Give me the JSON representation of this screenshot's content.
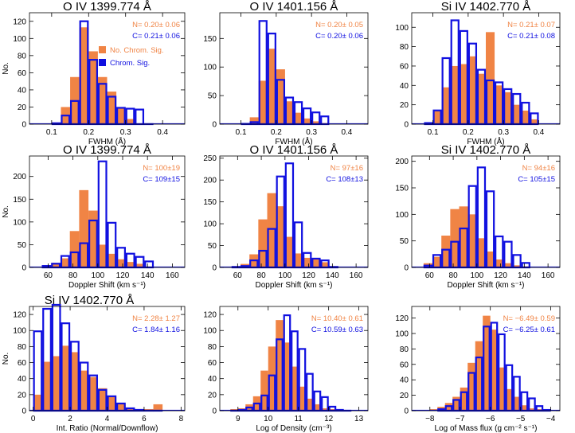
{
  "colors": {
    "no_chrom": "#F08445",
    "chrom": "#1010E0",
    "axis": "#000000"
  },
  "chart_data": [
    {
      "type": "bar",
      "title": "O IV 1399.774 Å",
      "xlabel": "FWHM (Å)",
      "ylabel": "No.",
      "xlim": [
        0.04,
        0.46
      ],
      "ylim": [
        0,
        130
      ],
      "xticks": [
        0.1,
        0.2,
        0.3,
        0.4
      ],
      "xtick_labels": [
        "0.1",
        "0.2",
        "0.3",
        "0.4"
      ],
      "yticks": [
        0,
        20,
        40,
        60,
        80,
        100,
        120
      ],
      "bin_start": 0.1,
      "bin_width": 0.025,
      "series": [
        {
          "name": "No. Chrom. Sig.",
          "values": [
            2,
            20,
            55,
            113,
            85,
            55,
            38,
            19,
            6,
            1,
            1
          ]
        },
        {
          "name": "Chrom. Sig.",
          "values": [
            2,
            11,
            28,
            121,
            76,
            48,
            33,
            20,
            19,
            18,
            1
          ]
        }
      ],
      "annotations": [
        {
          "label": "N= 0.20± 0.06",
          "series": 0
        },
        {
          "label": "C= 0.21± 0.06",
          "series": 1
        }
      ],
      "legend": {
        "placement": "top-right",
        "items": [
          {
            "label": "No. Chrom. Sig.",
            "series": 0
          },
          {
            "label": "Chrom. Sig.",
            "series": 1
          }
        ]
      }
    },
    {
      "type": "bar",
      "title": "O IV 1401.156 Å",
      "xlabel": "FWHM (Å)",
      "ylabel": "",
      "xlim": [
        0.04,
        0.46
      ],
      "ylim": [
        0,
        195
      ],
      "xticks": [
        0.1,
        0.2,
        0.3,
        0.4
      ],
      "xtick_labels": [
        "0.1",
        "0.2",
        "0.3",
        "0.4"
      ],
      "yticks": [
        0,
        50,
        100,
        150
      ],
      "bin_start": 0.1,
      "bin_width": 0.025,
      "series": [
        {
          "name": "No. Chrom. Sig.",
          "values": [
            2,
            12,
            76,
            132,
            96,
            40,
            20,
            10,
            5,
            2,
            1
          ]
        },
        {
          "name": "Chrom. Sig.",
          "values": [
            2,
            5,
            182,
            160,
            79,
            48,
            40,
            29,
            22,
            15,
            1
          ]
        }
      ],
      "annotations": [
        {
          "label": "N= 0.20± 0.05",
          "series": 0
        },
        {
          "label": "C= 0.20± 0.06",
          "series": 1
        }
      ]
    },
    {
      "type": "bar",
      "title": "Si IV 1402.770 Å",
      "xlabel": "FWHM (Å)",
      "ylabel": "",
      "xlim": [
        0.04,
        0.46
      ],
      "ylim": [
        0,
        115
      ],
      "xticks": [
        0.1,
        0.2,
        0.3,
        0.4
      ],
      "xtick_labels": [
        "0.1",
        "0.2",
        "0.3",
        "0.4"
      ],
      "yticks": [
        0,
        20,
        40,
        60,
        80,
        100
      ],
      "bin_start": 0.075,
      "bin_width": 0.025,
      "series": [
        {
          "name": "No. Chrom. Sig.",
          "values": [
            2,
            14,
            38,
            60,
            62,
            70,
            52,
            95,
            40,
            33,
            20,
            14,
            5
          ]
        },
        {
          "name": "Chrom. Sig.",
          "values": [
            2,
            15,
            69,
            108,
            97,
            84,
            57,
            46,
            44,
            37,
            32,
            23,
            12
          ]
        }
      ],
      "annotations": [
        {
          "label": "N= 0.21± 0.07",
          "series": 0
        },
        {
          "label": "C= 0.21± 0.08",
          "series": 1
        }
      ]
    },
    {
      "type": "bar",
      "title": "O IV 1399.774 Å",
      "xlabel": "Doppler Shift (km s⁻¹)",
      "ylabel": "No.",
      "xlim": [
        45,
        170
      ],
      "ylim": [
        0,
        245
      ],
      "xticks": [
        60,
        80,
        100,
        120,
        140,
        160
      ],
      "xtick_labels": [
        "60",
        "80",
        "100",
        "120",
        "140",
        "160"
      ],
      "yticks": [
        0,
        50,
        100,
        150,
        200
      ],
      "bin_start": 55,
      "bin_width": 7.5,
      "series": [
        {
          "name": "No. Chrom. Sig.",
          "values": [
            5,
            10,
            20,
            80,
            170,
            125,
            50,
            30,
            18,
            12,
            8,
            2
          ]
        },
        {
          "name": "Chrom. Sig.",
          "values": [
            5,
            10,
            27,
            35,
            55,
            105,
            235,
            100,
            45,
            32,
            25,
            15
          ]
        }
      ],
      "annotations": [
        {
          "label": "N= 100±19",
          "series": 0
        },
        {
          "label": "C= 109±15",
          "series": 1
        }
      ]
    },
    {
      "type": "bar",
      "title": "O IV 1401.156 Å",
      "xlabel": "Doppler Shift (km s⁻¹)",
      "ylabel": "",
      "xlim": [
        45,
        170
      ],
      "ylim": [
        0,
        255
      ],
      "xticks": [
        60,
        80,
        100,
        120,
        140,
        160
      ],
      "xtick_labels": [
        "60",
        "80",
        "100",
        "120",
        "140",
        "160"
      ],
      "yticks": [
        0,
        50,
        100,
        150,
        200,
        250
      ],
      "bin_start": 55,
      "bin_width": 7.5,
      "series": [
        {
          "name": "No. Chrom. Sig.",
          "values": [
            3,
            8,
            30,
            110,
            170,
            140,
            70,
            32,
            22,
            20,
            12,
            3
          ]
        },
        {
          "name": "Chrom. Sig.",
          "values": [
            3,
            5,
            18,
            40,
            90,
            210,
            240,
            105,
            35,
            22,
            18,
            3
          ]
        }
      ],
      "annotations": [
        {
          "label": "N= 97±16",
          "series": 0
        },
        {
          "label": "C= 108±13",
          "series": 1
        }
      ]
    },
    {
      "type": "bar",
      "title": "Si IV 1402.770 Å",
      "xlabel": "Doppler Shift (km s⁻¹)",
      "ylabel": "",
      "xlim": [
        45,
        170
      ],
      "ylim": [
        0,
        210
      ],
      "xticks": [
        60,
        80,
        100,
        120,
        140,
        160
      ],
      "xtick_labels": [
        "60",
        "80",
        "100",
        "120",
        "140",
        "160"
      ],
      "yticks": [
        0,
        50,
        100,
        150,
        200
      ],
      "bin_start": 55,
      "bin_width": 7.5,
      "series": [
        {
          "name": "No. Chrom. Sig.",
          "values": [
            8,
            20,
            60,
            110,
            115,
            100,
            55,
            30,
            15,
            8,
            4,
            2
          ]
        },
        {
          "name": "Chrom. Sig.",
          "values": [
            5,
            25,
            35,
            50,
            75,
            155,
            190,
            145,
            60,
            50,
            25,
            10
          ]
        }
      ],
      "annotations": [
        {
          "label": "N= 94±16",
          "series": 0
        },
        {
          "label": "C= 105±15",
          "series": 1
        }
      ]
    },
    {
      "type": "bar",
      "title": "Si IV 1402.770 Å",
      "xlabel": "Int. Ratio (Normal/Downflow)",
      "ylabel": "No.",
      "xlim": [
        -0.2,
        8.2
      ],
      "ylim": [
        0,
        130
      ],
      "xticks": [
        0,
        2,
        4,
        6,
        8
      ],
      "xtick_labels": [
        "0",
        "2",
        "4",
        "6",
        "8"
      ],
      "yticks": [
        0,
        20,
        40,
        60,
        80,
        100,
        120
      ],
      "bin_start": 0.0,
      "bin_width": 0.5,
      "series": [
        {
          "name": "No. Chrom. Sig.",
          "values": [
            20,
            61,
            68,
            81,
            73,
            50,
            42,
            28,
            17,
            8,
            3,
            2,
            2,
            8,
            1,
            1
          ]
        },
        {
          "name": "Chrom. Sig.",
          "values": [
            100,
            128,
            133,
            110,
            87,
            61,
            45,
            27,
            19,
            10,
            4,
            2,
            1,
            1,
            0,
            0
          ]
        }
      ],
      "annotations": [
        {
          "label": "N= 2.28± 1.27",
          "series": 0
        },
        {
          "label": "C= 1.84± 1.16",
          "series": 1
        }
      ]
    },
    {
      "type": "bar",
      "title": "",
      "xlabel": "Log of Density  (cm⁻³)",
      "ylabel": "",
      "xlim": [
        8.4,
        13.3
      ],
      "ylim": [
        0,
        130
      ],
      "xticks": [
        9,
        10,
        11,
        12,
        13
      ],
      "xtick_labels": [
        "9",
        "10",
        "11",
        "12",
        "13"
      ],
      "yticks": [
        0,
        20,
        40,
        60,
        80,
        100,
        120
      ],
      "bin_start": 8.75,
      "bin_width": 0.25,
      "series": [
        {
          "name": "No. Chrom. Sig.",
          "values": [
            2,
            3,
            8,
            18,
            50,
            80,
            113,
            85,
            55,
            30,
            15,
            8,
            3,
            2,
            1,
            1
          ]
        },
        {
          "name": "Chrom. Sig.",
          "values": [
            1,
            2,
            5,
            10,
            20,
            45,
            90,
            120,
            100,
            78,
            47,
            25,
            18,
            6,
            2,
            1
          ]
        }
      ],
      "annotations": [
        {
          "label": "N= 10.40± 0.61",
          "series": 0
        },
        {
          "label": "C= 10.59± 0.63",
          "series": 1
        }
      ]
    },
    {
      "type": "bar",
      "title": "",
      "xlabel": "Log of Mass flux (g cm⁻² s⁻¹)",
      "ylabel": "",
      "xlim": [
        -8.6,
        -3.7
      ],
      "ylim": [
        0,
        135
      ],
      "xticks": [
        -8,
        -7,
        -6,
        -5,
        -4
      ],
      "xtick_labels": [
        "−8",
        "−7",
        "−6",
        "−5",
        "−4"
      ],
      "yticks": [
        0,
        20,
        40,
        60,
        80,
        100,
        120
      ],
      "bin_start": -8.0,
      "bin_width": 0.25,
      "series": [
        {
          "name": "No. Chrom. Sig.",
          "values": [
            2,
            5,
            10,
            18,
            30,
            62,
            90,
            123,
            105,
            56,
            28,
            18,
            7,
            3,
            2,
            1
          ]
        },
        {
          "name": "Chrom. Sig.",
          "values": [
            1,
            3,
            7,
            15,
            25,
            50,
            70,
            110,
            115,
            100,
            60,
            45,
            25,
            17,
            7,
            2
          ]
        }
      ],
      "annotations": [
        {
          "label": "N= −6.49± 0.59",
          "series": 0
        },
        {
          "label": "C= −6.25± 0.61",
          "series": 1
        }
      ]
    }
  ]
}
